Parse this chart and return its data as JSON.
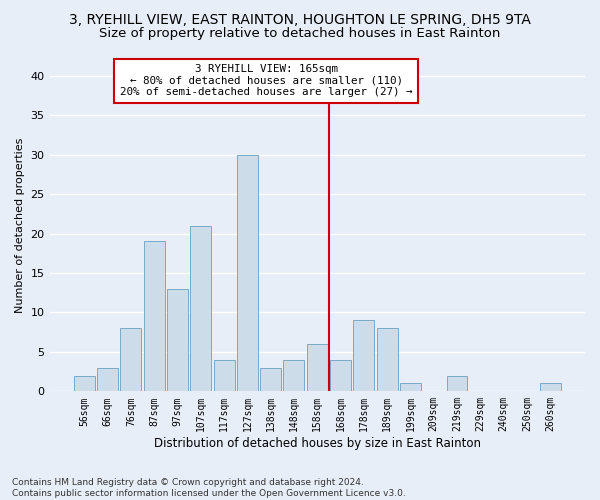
{
  "title": "3, RYEHILL VIEW, EAST RAINTON, HOUGHTON LE SPRING, DH5 9TA",
  "subtitle": "Size of property relative to detached houses in East Rainton",
  "xlabel": "Distribution of detached houses by size in East Rainton",
  "ylabel": "Number of detached properties",
  "footnote1": "Contains HM Land Registry data © Crown copyright and database right 2024.",
  "footnote2": "Contains public sector information licensed under the Open Government Licence v3.0.",
  "bar_labels": [
    "56sqm",
    "66sqm",
    "76sqm",
    "87sqm",
    "97sqm",
    "107sqm",
    "117sqm",
    "127sqm",
    "138sqm",
    "148sqm",
    "158sqm",
    "168sqm",
    "178sqm",
    "189sqm",
    "199sqm",
    "209sqm",
    "219sqm",
    "229sqm",
    "240sqm",
    "250sqm",
    "260sqm"
  ],
  "bar_values": [
    2,
    3,
    8,
    19,
    13,
    21,
    4,
    30,
    3,
    4,
    6,
    4,
    9,
    8,
    1,
    0,
    2,
    0,
    0,
    0,
    1
  ],
  "bar_color": "#ccdce8",
  "bar_edge_color": "#7aaac8",
  "annotation_title": "3 RYEHILL VIEW: 165sqm",
  "annotation_line1": "← 80% of detached houses are smaller (110)",
  "annotation_line2": "20% of semi-detached houses are larger (27) →",
  "annotation_box_color": "#ffffff",
  "annotation_box_edge": "#cc0000",
  "line_color": "#cc0000",
  "ylim": [
    0,
    42
  ],
  "yticks": [
    0,
    5,
    10,
    15,
    20,
    25,
    30,
    35,
    40
  ],
  "bg_color": "#e8eef8",
  "grid_color": "#ffffff",
  "title_fontsize": 10,
  "subtitle_fontsize": 9.5
}
